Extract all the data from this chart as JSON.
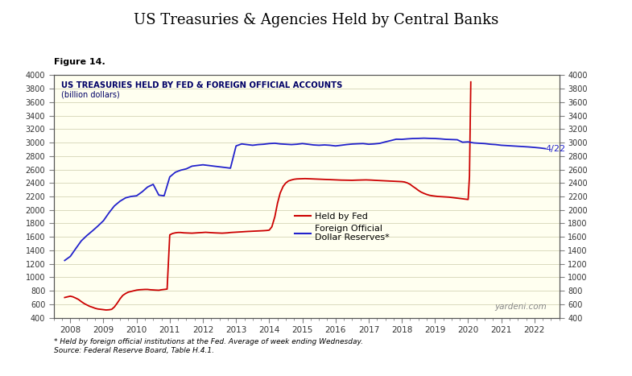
{
  "title": "US Treasuries & Agencies Held by Central Banks",
  "subtitle": "Figure 14.",
  "inner_title": "US TREASURIES HELD BY FED & FOREIGN OFFICIAL ACCOUNTS",
  "inner_subtitle": "(billion dollars)",
  "background_color": "#fffff0",
  "outer_background": "#ffffff",
  "ylim": [
    400,
    4000
  ],
  "yticks": [
    400,
    600,
    800,
    1000,
    1200,
    1400,
    1600,
    1800,
    2000,
    2200,
    2400,
    2600,
    2800,
    3000,
    3200,
    3400,
    3600,
    3800,
    4000
  ],
  "xlabel_years": [
    2008,
    2009,
    2010,
    2011,
    2012,
    2013,
    2014,
    2015,
    2016,
    2017,
    2018,
    2019,
    2020,
    2021,
    2022
  ],
  "watermark": "yardeni.com",
  "footnote": "* Held by foreign official institutions at the Fed. Average of week ending Wednesday.\nSource: Federal Reserve Board, Table H.4.1.",
  "label_422": "4/22",
  "legend": {
    "fed_label": "Held by Fed",
    "foreign_label": "Foreign Official\nDollar Reserves*"
  },
  "fed_color": "#cc0000",
  "foreign_color": "#2222cc",
  "fed_data_x": [
    2007.83,
    2008.0,
    2008.08,
    2008.17,
    2008.25,
    2008.33,
    2008.42,
    2008.5,
    2008.58,
    2008.67,
    2008.75,
    2008.83,
    2008.92,
    2009.0,
    2009.08,
    2009.17,
    2009.25,
    2009.33,
    2009.42,
    2009.5,
    2009.58,
    2009.67,
    2009.75,
    2009.83,
    2009.92,
    2010.0,
    2010.08,
    2010.17,
    2010.25,
    2010.33,
    2010.42,
    2010.5,
    2010.58,
    2010.67,
    2010.75,
    2010.83,
    2010.92,
    2011.0,
    2011.08,
    2011.17,
    2011.25,
    2011.33,
    2011.42,
    2011.5,
    2011.58,
    2011.67,
    2011.75,
    2011.83,
    2011.92,
    2012.0,
    2012.08,
    2012.17,
    2012.25,
    2012.33,
    2012.42,
    2012.5,
    2012.58,
    2012.67,
    2012.75,
    2012.83,
    2012.92,
    2013.0,
    2013.08,
    2013.17,
    2013.25,
    2013.33,
    2013.42,
    2013.5,
    2013.58,
    2013.67,
    2013.75,
    2013.83,
    2013.92,
    2014.0,
    2014.08,
    2014.17,
    2014.25,
    2014.33,
    2014.42,
    2014.5,
    2014.58,
    2014.67,
    2014.75,
    2014.83,
    2014.92,
    2015.0,
    2015.08,
    2015.17,
    2015.25,
    2015.33,
    2015.42,
    2015.5,
    2015.58,
    2015.67,
    2015.75,
    2015.83,
    2015.92,
    2016.0,
    2016.08,
    2016.17,
    2016.25,
    2016.33,
    2016.42,
    2016.5,
    2016.58,
    2016.67,
    2016.75,
    2016.83,
    2016.92,
    2017.0,
    2017.08,
    2017.17,
    2017.25,
    2017.33,
    2017.42,
    2017.5,
    2017.58,
    2017.67,
    2017.75,
    2017.83,
    2017.92,
    2018.0,
    2018.08,
    2018.17,
    2018.25,
    2018.33,
    2018.42,
    2018.5,
    2018.58,
    2018.67,
    2018.75,
    2018.83,
    2018.92,
    2019.0,
    2019.08,
    2019.17,
    2019.25,
    2019.33,
    2019.42,
    2019.5,
    2019.58,
    2019.67,
    2019.75,
    2019.83,
    2019.92,
    2019.96,
    2020.0,
    2020.04,
    2020.08
  ],
  "fed_data_y": [
    700,
    720,
    710,
    690,
    670,
    640,
    610,
    590,
    570,
    555,
    540,
    530,
    525,
    520,
    515,
    518,
    525,
    560,
    620,
    680,
    730,
    760,
    780,
    790,
    800,
    810,
    815,
    818,
    820,
    820,
    815,
    812,
    810,
    808,
    815,
    820,
    825,
    1630,
    1650,
    1660,
    1665,
    1665,
    1660,
    1658,
    1655,
    1655,
    1658,
    1660,
    1662,
    1665,
    1668,
    1665,
    1662,
    1660,
    1658,
    1655,
    1655,
    1658,
    1660,
    1665,
    1668,
    1670,
    1672,
    1675,
    1678,
    1680,
    1682,
    1683,
    1685,
    1688,
    1690,
    1692,
    1695,
    1700,
    1750,
    1900,
    2100,
    2250,
    2350,
    2400,
    2430,
    2445,
    2455,
    2460,
    2462,
    2465,
    2465,
    2463,
    2462,
    2460,
    2458,
    2456,
    2455,
    2453,
    2452,
    2450,
    2448,
    2446,
    2445,
    2443,
    2442,
    2440,
    2440,
    2440,
    2442,
    2443,
    2444,
    2445,
    2446,
    2445,
    2443,
    2440,
    2438,
    2436,
    2434,
    2432,
    2430,
    2428,
    2426,
    2424,
    2422,
    2420,
    2415,
    2400,
    2380,
    2350,
    2320,
    2290,
    2265,
    2245,
    2230,
    2218,
    2210,
    2205,
    2200,
    2198,
    2195,
    2193,
    2190,
    2185,
    2180,
    2175,
    2170,
    2165,
    2160,
    2158,
    2155,
    2500,
    3900
  ],
  "foreign_data_x": [
    2007.83,
    2008.0,
    2008.17,
    2008.33,
    2008.5,
    2008.67,
    2008.83,
    2009.0,
    2009.17,
    2009.33,
    2009.5,
    2009.67,
    2009.83,
    2010.0,
    2010.17,
    2010.33,
    2010.5,
    2010.67,
    2010.83,
    2011.0,
    2011.17,
    2011.33,
    2011.5,
    2011.67,
    2011.83,
    2012.0,
    2012.17,
    2012.33,
    2012.5,
    2012.67,
    2012.83,
    2013.0,
    2013.17,
    2013.33,
    2013.5,
    2013.67,
    2013.83,
    2014.0,
    2014.17,
    2014.33,
    2014.5,
    2014.67,
    2014.83,
    2015.0,
    2015.17,
    2015.33,
    2015.5,
    2015.67,
    2015.83,
    2016.0,
    2016.17,
    2016.33,
    2016.5,
    2016.67,
    2016.83,
    2017.0,
    2017.17,
    2017.33,
    2017.5,
    2017.67,
    2017.83,
    2018.0,
    2018.17,
    2018.33,
    2018.5,
    2018.67,
    2018.83,
    2019.0,
    2019.17,
    2019.33,
    2019.5,
    2019.67,
    2019.83,
    2020.0,
    2020.17,
    2020.33,
    2020.5,
    2020.67,
    2020.83,
    2021.0,
    2021.17,
    2021.33,
    2021.5,
    2021.67,
    2021.83,
    2022.0,
    2022.17,
    2022.33
  ],
  "foreign_data_y": [
    1250,
    1310,
    1430,
    1540,
    1620,
    1690,
    1760,
    1840,
    1960,
    2060,
    2130,
    2180,
    2200,
    2210,
    2270,
    2340,
    2380,
    2220,
    2210,
    2490,
    2560,
    2590,
    2610,
    2650,
    2660,
    2670,
    2660,
    2650,
    2640,
    2630,
    2620,
    2950,
    2980,
    2970,
    2960,
    2970,
    2975,
    2985,
    2990,
    2980,
    2975,
    2970,
    2975,
    2985,
    2975,
    2965,
    2960,
    2965,
    2960,
    2950,
    2960,
    2970,
    2978,
    2982,
    2985,
    2975,
    2980,
    2988,
    3010,
    3030,
    3050,
    3048,
    3055,
    3060,
    3062,
    3065,
    3062,
    3060,
    3055,
    3048,
    3045,
    3042,
    3005,
    3010,
    2995,
    2990,
    2985,
    2975,
    2970,
    2960,
    2955,
    2950,
    2945,
    2940,
    2935,
    2928,
    2920,
    2910
  ]
}
